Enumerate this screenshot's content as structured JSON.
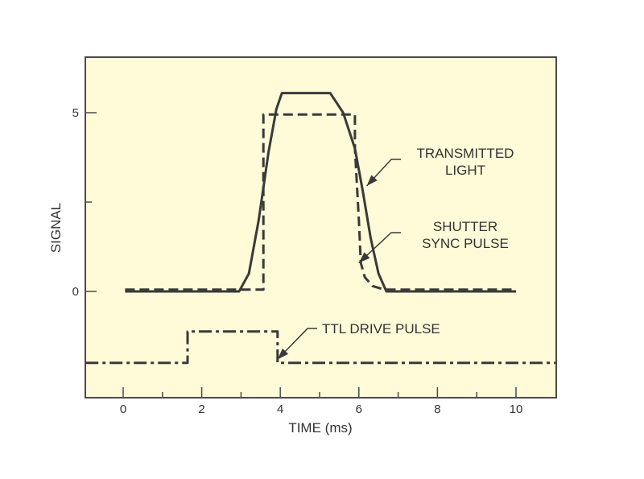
{
  "chart_data": {
    "type": "line",
    "title": "",
    "xlabel": "TIME (ms)",
    "ylabel": "SIGNAL",
    "xlim": [
      -0.96,
      11.0
    ],
    "ylim": [
      -2.97,
      6.55
    ],
    "grid": false,
    "legend": "none (series labeled with arrow annotations)",
    "background_color": "#fffad8",
    "line_color": "#3a3a3a",
    "x_ticks": {
      "major": [
        0,
        2,
        4,
        6,
        8,
        10
      ],
      "minor": [
        1,
        3,
        5,
        7,
        9
      ]
    },
    "x_tick_labels": [
      "0",
      "2",
      "4",
      "6",
      "8",
      "10"
    ],
    "y_ticks": {
      "major": [
        0,
        5
      ],
      "minor": [
        2.5
      ]
    },
    "y_tick_labels": [
      "0",
      "5"
    ],
    "series": [
      {
        "name": "TRANSMITTED LIGHT",
        "style": "solid",
        "x": [
          0.05,
          2.95,
          3.2,
          3.45,
          3.7,
          3.9,
          4.04,
          4.3,
          5.27,
          5.6,
          5.9,
          6.1,
          6.3,
          6.5,
          6.7,
          10.0
        ],
        "y": [
          0.0,
          0.0,
          0.5,
          2.0,
          3.9,
          5.1,
          5.55,
          5.55,
          5.55,
          5.0,
          4.0,
          2.8,
          1.5,
          0.5,
          0.0,
          0.0
        ]
      },
      {
        "name": "SHUTTER SYNC PULSE",
        "style": "dashed",
        "x": [
          0.05,
          3.57,
          3.57,
          5.9,
          5.9,
          6.0,
          6.05,
          6.15,
          6.35,
          6.66,
          10.0
        ],
        "y": [
          0.05,
          0.05,
          4.95,
          4.95,
          4.0,
          2.0,
          0.8,
          0.4,
          0.15,
          0.05,
          0.05
        ]
      },
      {
        "name": "TTL DRIVE PULSE",
        "style": "dash-dot",
        "x": [
          -0.96,
          1.64,
          1.64,
          3.93,
          3.93,
          11.0
        ],
        "y": [
          -2.0,
          -2.0,
          -1.12,
          -1.12,
          -2.0,
          -2.0
        ]
      }
    ],
    "annotations": [
      {
        "text_lines": [
          "TRANSMITTED",
          "LIGHT"
        ],
        "points_to": {
          "x": 6.2,
          "y": 2.95
        }
      },
      {
        "text_lines": [
          "SHUTTER",
          "SYNC PULSE"
        ],
        "points_to": {
          "x": 6.0,
          "y": 0.8
        }
      },
      {
        "text_lines": [
          "TTL DRIVE PULSE"
        ],
        "points_to": {
          "x": 3.93,
          "y": -1.9
        }
      }
    ]
  }
}
